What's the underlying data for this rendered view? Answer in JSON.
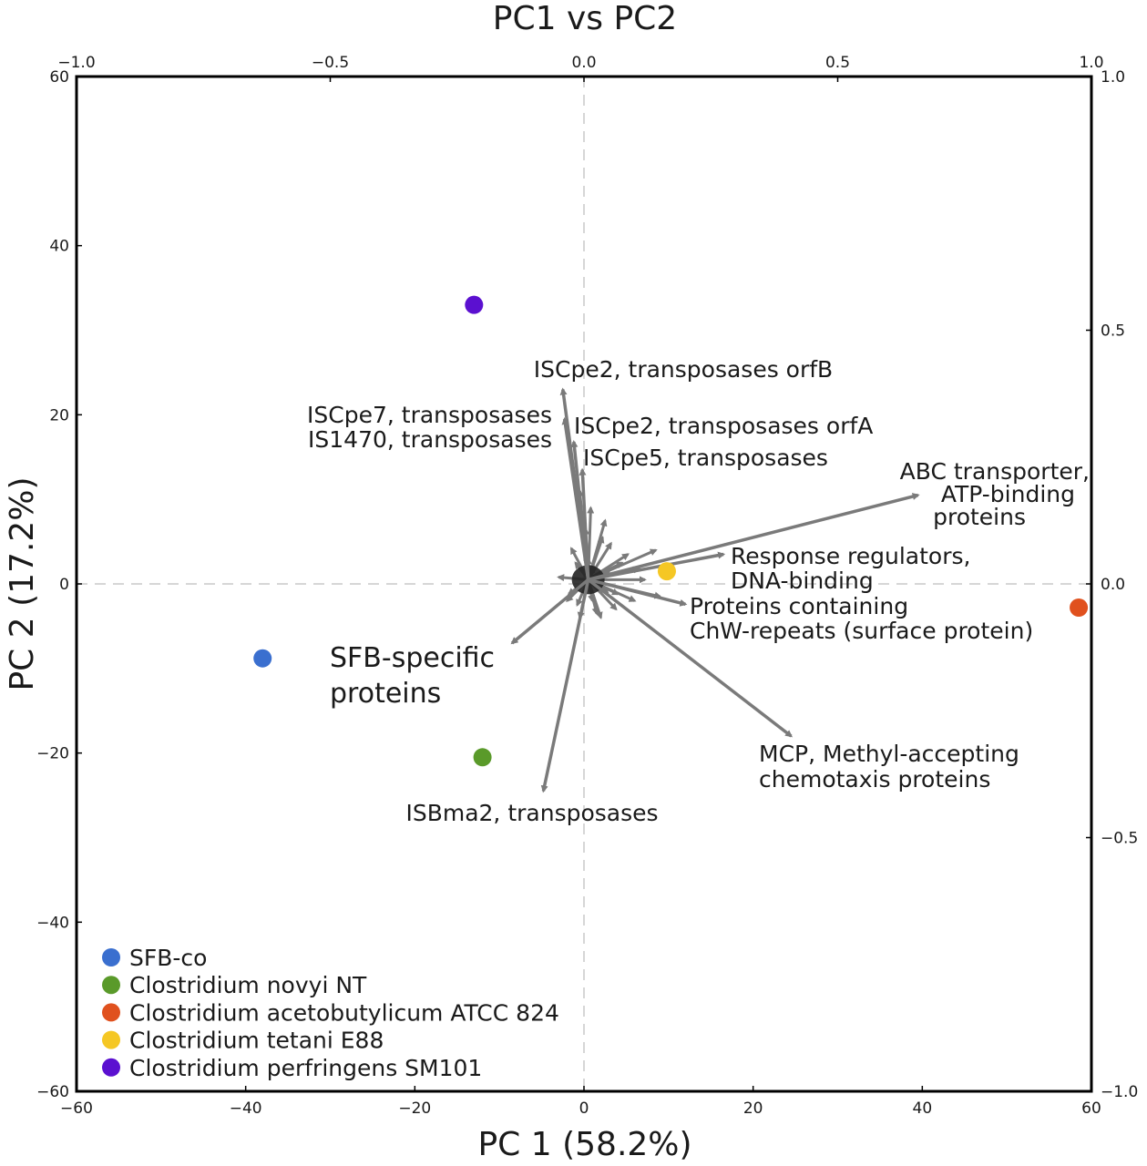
{
  "chart_data": {
    "type": "scatter",
    "title": "PC1 vs PC2",
    "xlabel": "PC 1 (58.2%)",
    "ylabel": "PC 2 (17.2%)",
    "xlim": [
      -60,
      60
    ],
    "ylim": [
      -60,
      60
    ],
    "x_ticks": [
      "−60",
      "−40",
      "−20",
      "0",
      "20",
      "40",
      "60"
    ],
    "y_ticks": [
      "60",
      "40",
      "20",
      "0",
      "−20",
      "−40",
      "−60"
    ],
    "secondary_xlim": [
      -1.0,
      1.0
    ],
    "secondary_ylim": [
      -1.0,
      1.0
    ],
    "top_ticks": [
      "−1.0",
      "−0.5",
      "0.0",
      "0.5",
      "1.0"
    ],
    "right_ticks": [
      "1.0",
      "0.5",
      "0.0",
      "−0.5",
      "−1.0"
    ],
    "origin_lines": "dashed",
    "legend_position": "bottom-left",
    "series": [
      {
        "name": "SFB-co",
        "color": "#3a6fcf",
        "x": -38,
        "y": -8.8
      },
      {
        "name": "Clostridium novyi NT",
        "color": "#5a9a2a",
        "x": -12,
        "y": -20.5
      },
      {
        "name": "Clostridium acetobutylicum ATCC 824",
        "color": "#e0511e",
        "x": 58.5,
        "y": -2.8
      },
      {
        "name": "Clostridium tetani E88",
        "color": "#f5c724",
        "x": 9.8,
        "y": 1.5
      },
      {
        "name": "Clostridium perfringens SM101",
        "color": "#5b10d0",
        "x": -13,
        "y": 33.0
      }
    ],
    "loadings": [
      {
        "label_lines": [
          "ISCpe2, transposases orfB"
        ],
        "x": -2.5,
        "y": 23.0
      },
      {
        "label_lines": [
          "ISCpe7, transposases",
          "IS1470, transposases"
        ],
        "x": -2.3,
        "y": 19.5
      },
      {
        "label_lines": [
          "ISCpe2, transposases orfA"
        ],
        "x": -1.2,
        "y": 16.8
      },
      {
        "label_lines": [
          "ISCpe5, transposases"
        ],
        "x": -0.2,
        "y": 13.5
      },
      {
        "label_lines": [
          "ABC transporter,",
          "ATP-binding",
          "proteins"
        ],
        "x": 39.5,
        "y": 10.5
      },
      {
        "label_lines": [
          "Response regulators,",
          "DNA-binding"
        ],
        "x": 16.5,
        "y": 3.5
      },
      {
        "label_lines": [
          "Proteins containing",
          "ChW-repeats (surface protein)"
        ],
        "x": 12.0,
        "y": -2.4
      },
      {
        "label_lines": [
          "MCP, Methyl-accepting",
          "chemotaxis proteins"
        ],
        "x": 24.5,
        "y": -18.0
      },
      {
        "label_lines": [
          "ISBma2, transposases"
        ],
        "x": -4.8,
        "y": -24.5
      },
      {
        "label_lines": [
          "SFB-specific",
          "proteins"
        ],
        "x": -8.5,
        "y": -7.0
      }
    ],
    "minor_loadings": [
      [
        2.5,
        7.5
      ],
      [
        0.8,
        9.0
      ],
      [
        -0.5,
        11.0
      ],
      [
        2.2,
        5.5
      ],
      [
        5.2,
        3.5
      ],
      [
        8.5,
        4.0
      ],
      [
        6.5,
        1.8
      ],
      [
        9.0,
        -1.5
      ],
      [
        6.0,
        -2.0
      ],
      [
        3.8,
        -3.0
      ],
      [
        2.0,
        -4.0
      ],
      [
        -0.5,
        -4.0
      ],
      [
        -2.0,
        -2.0
      ],
      [
        -3.0,
        0.8
      ],
      [
        -1.5,
        4.2
      ],
      [
        0.2,
        6.5
      ],
      [
        1.5,
        -3.5
      ],
      [
        4.5,
        2.5
      ],
      [
        7.2,
        0.5
      ],
      [
        3.2,
        4.8
      ],
      [
        -1.0,
        2.5
      ],
      [
        1.0,
        -2.0
      ],
      [
        0.5,
        3.0
      ],
      [
        2.8,
        -1.0
      ],
      [
        -1.8,
        -1.2
      ],
      [
        3.0,
        1.5
      ],
      [
        4.0,
        -1.2
      ],
      [
        -0.8,
        -2.5
      ],
      [
        1.2,
        2.0
      ],
      [
        2.0,
        0.5
      ]
    ],
    "loading_color": "#7a7a7a"
  }
}
